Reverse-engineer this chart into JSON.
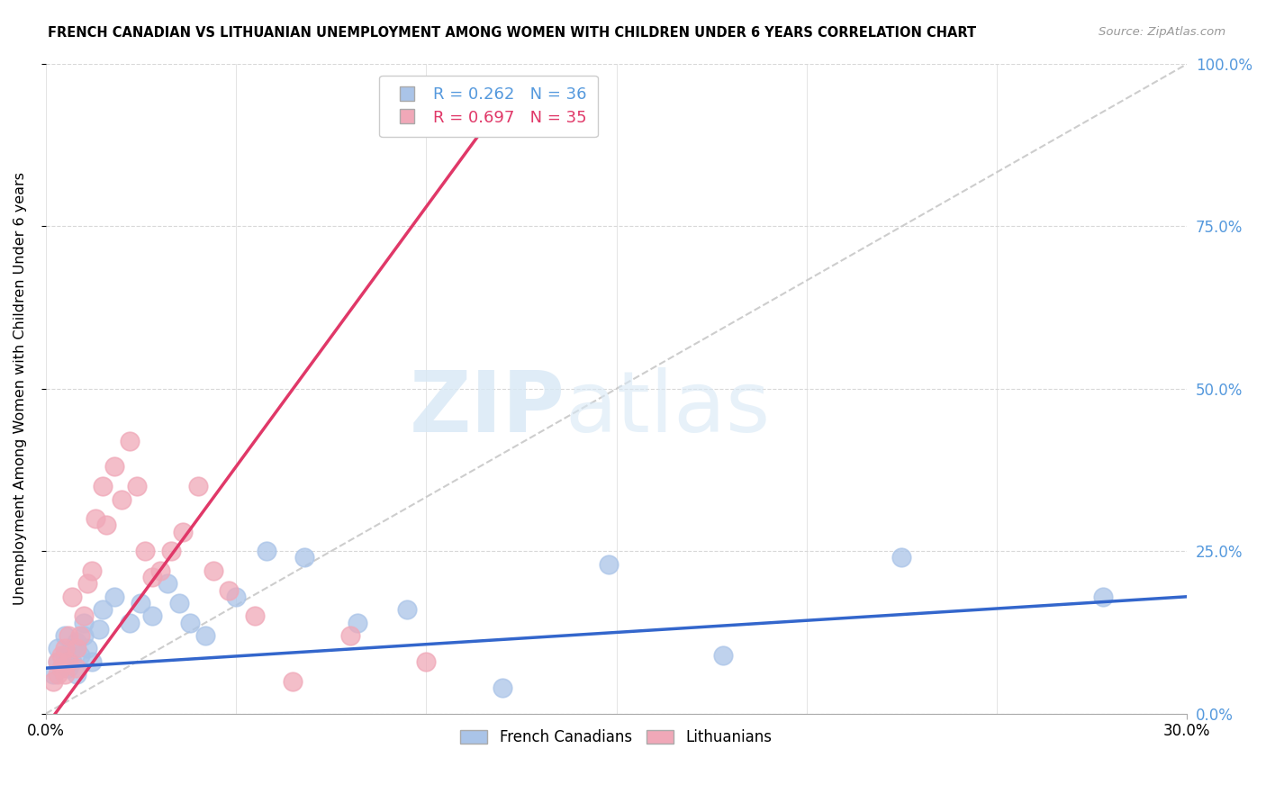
{
  "title": "FRENCH CANADIAN VS LITHUANIAN UNEMPLOYMENT AMONG WOMEN WITH CHILDREN UNDER 6 YEARS CORRELATION CHART",
  "source": "Source: ZipAtlas.com",
  "ylabel": "Unemployment Among Women with Children Under 6 years",
  "right_yticks": [
    "0.0%",
    "25.0%",
    "50.0%",
    "75.0%",
    "100.0%"
  ],
  "right_ytick_vals": [
    0.0,
    0.25,
    0.5,
    0.75,
    1.0
  ],
  "watermark_zip": "ZIP",
  "watermark_atlas": "atlas",
  "fc_color": "#aac4e8",
  "lt_color": "#f0a8b8",
  "fc_line_color": "#3366cc",
  "lt_line_color": "#e03868",
  "diag_color": "#c8c8c8",
  "R_fc": 0.262,
  "N_fc": 36,
  "R_lt": 0.697,
  "N_lt": 35,
  "xlim": [
    0.0,
    0.3
  ],
  "ylim": [
    0.0,
    1.0
  ],
  "grid_color": "#d8d8d8",
  "french_canadian_x": [
    0.002,
    0.003,
    0.003,
    0.004,
    0.005,
    0.005,
    0.006,
    0.007,
    0.007,
    0.008,
    0.008,
    0.009,
    0.01,
    0.01,
    0.011,
    0.012,
    0.014,
    0.015,
    0.018,
    0.022,
    0.025,
    0.028,
    0.032,
    0.035,
    0.038,
    0.042,
    0.05,
    0.058,
    0.068,
    0.082,
    0.095,
    0.12,
    0.148,
    0.178,
    0.225,
    0.278
  ],
  "french_canadian_y": [
    0.06,
    0.08,
    0.1,
    0.07,
    0.09,
    0.12,
    0.07,
    0.1,
    0.08,
    0.11,
    0.06,
    0.09,
    0.12,
    0.14,
    0.1,
    0.08,
    0.13,
    0.16,
    0.18,
    0.14,
    0.17,
    0.15,
    0.2,
    0.17,
    0.14,
    0.12,
    0.18,
    0.25,
    0.24,
    0.14,
    0.16,
    0.04,
    0.23,
    0.09,
    0.24,
    0.18
  ],
  "lithuanian_x": [
    0.002,
    0.003,
    0.003,
    0.004,
    0.004,
    0.005,
    0.005,
    0.006,
    0.006,
    0.007,
    0.008,
    0.008,
    0.009,
    0.01,
    0.011,
    0.012,
    0.013,
    0.015,
    0.016,
    0.018,
    0.02,
    0.022,
    0.024,
    0.026,
    0.028,
    0.03,
    0.033,
    0.036,
    0.04,
    0.044,
    0.048,
    0.055,
    0.065,
    0.08,
    0.1
  ],
  "lithuanian_y": [
    0.05,
    0.06,
    0.08,
    0.07,
    0.09,
    0.06,
    0.1,
    0.08,
    0.12,
    0.18,
    0.07,
    0.1,
    0.12,
    0.15,
    0.2,
    0.22,
    0.3,
    0.35,
    0.29,
    0.38,
    0.33,
    0.42,
    0.35,
    0.25,
    0.21,
    0.22,
    0.25,
    0.28,
    0.35,
    0.22,
    0.19,
    0.15,
    0.05,
    0.12,
    0.08
  ],
  "lt_line_x0": 0.0,
  "lt_line_y0": -0.02,
  "lt_line_x1": 0.115,
  "lt_line_y1": 0.9,
  "fc_line_x0": 0.0,
  "fc_line_y0": 0.07,
  "fc_line_x1": 0.3,
  "fc_line_y1": 0.18
}
